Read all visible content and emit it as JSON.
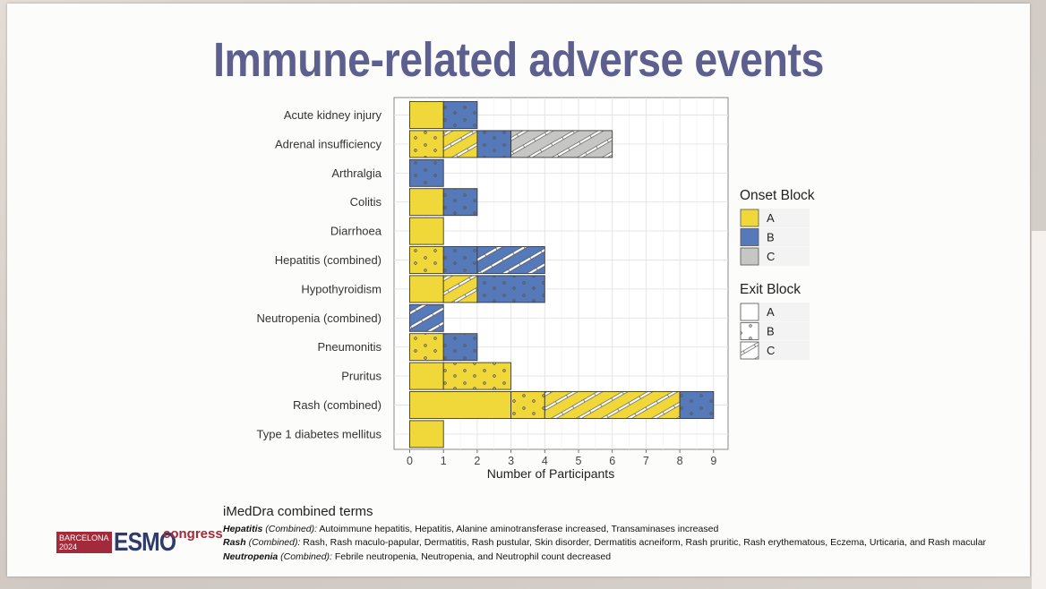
{
  "slide": {
    "title": "Immune-related adverse events"
  },
  "chart_data": {
    "type": "bar",
    "orientation": "horizontal",
    "stacked": true,
    "xlabel": "Number of Participants",
    "ylabel": "",
    "xlim": [
      0,
      9
    ],
    "xticks": [
      0,
      1,
      2,
      3,
      4,
      5,
      6,
      7,
      8,
      9
    ],
    "grid": true,
    "fill_colors": {
      "A": "#f0d73a",
      "B": "#5579b9",
      "C": "#c6c6c4"
    },
    "categories": [
      "Acute kidney injury",
      "Adrenal insufficiency",
      "Arthralgia",
      "Colitis",
      "Diarrhoea",
      "Hepatitis (combined)",
      "Hypothyroidism",
      "Neutropenia (combined)",
      "Pneumonitis",
      "Pruritus",
      "Rash (combined)",
      "Type 1 diabetes mellitus"
    ],
    "segments": [
      [
        {
          "onset": "A",
          "exit": "A",
          "count": 1
        },
        {
          "onset": "B",
          "exit": "B",
          "count": 1
        }
      ],
      [
        {
          "onset": "A",
          "exit": "B",
          "count": 1
        },
        {
          "onset": "A",
          "exit": "C",
          "count": 1
        },
        {
          "onset": "B",
          "exit": "B",
          "count": 1
        },
        {
          "onset": "C",
          "exit": "C",
          "count": 3
        }
      ],
      [
        {
          "onset": "B",
          "exit": "B",
          "count": 1
        }
      ],
      [
        {
          "onset": "A",
          "exit": "A",
          "count": 1
        },
        {
          "onset": "B",
          "exit": "B",
          "count": 1
        }
      ],
      [
        {
          "onset": "A",
          "exit": "A",
          "count": 1
        }
      ],
      [
        {
          "onset": "A",
          "exit": "B",
          "count": 1
        },
        {
          "onset": "B",
          "exit": "B",
          "count": 1
        },
        {
          "onset": "B",
          "exit": "C",
          "count": 2
        }
      ],
      [
        {
          "onset": "A",
          "exit": "A",
          "count": 1
        },
        {
          "onset": "A",
          "exit": "C",
          "count": 1
        },
        {
          "onset": "B",
          "exit": "B",
          "count": 2
        }
      ],
      [
        {
          "onset": "B",
          "exit": "C",
          "count": 1
        }
      ],
      [
        {
          "onset": "A",
          "exit": "B",
          "count": 1
        },
        {
          "onset": "B",
          "exit": "B",
          "count": 1
        }
      ],
      [
        {
          "onset": "A",
          "exit": "A",
          "count": 1
        },
        {
          "onset": "A",
          "exit": "B",
          "count": 2
        }
      ],
      [
        {
          "onset": "A",
          "exit": "A",
          "count": 3
        },
        {
          "onset": "A",
          "exit": "B",
          "count": 1
        },
        {
          "onset": "A",
          "exit": "C",
          "count": 4
        },
        {
          "onset": "B",
          "exit": "B",
          "count": 1
        }
      ],
      [
        {
          "onset": "A",
          "exit": "A",
          "count": 1
        }
      ]
    ],
    "legends": [
      {
        "title": "Onset Block",
        "kind": "fill",
        "items": [
          "A",
          "B",
          "C"
        ]
      },
      {
        "title": "Exit Block",
        "kind": "pattern",
        "items": [
          "A",
          "B",
          "C"
        ]
      }
    ]
  },
  "footer": {
    "heading": "iMedDra combined terms",
    "notes": [
      {
        "term": "Hepatitis",
        "qualifier": " (Combined):",
        "text": " Autoimmune hepatitis, Hepatitis, Alanine aminotransferase increased, Transaminases increased"
      },
      {
        "term": "Rash",
        "qualifier": " (Combined):",
        "text": " Rash, Rash maculo-papular, Dermatitis, Rash pustular,  Skin disorder, Dermatitis acneiform, Rash pruritic, Rash erythematous, Eczema, Urticaria, and Rash macular"
      },
      {
        "term": "Neutropenia",
        "qualifier": " (Combined):",
        "text": "  Febrile neutropenia, Neutropenia, and Neutrophil count decreased"
      }
    ]
  },
  "logo": {
    "city": "BARCELONA",
    "year": "2024",
    "brand": "ESMO",
    "suffix": "congress"
  }
}
